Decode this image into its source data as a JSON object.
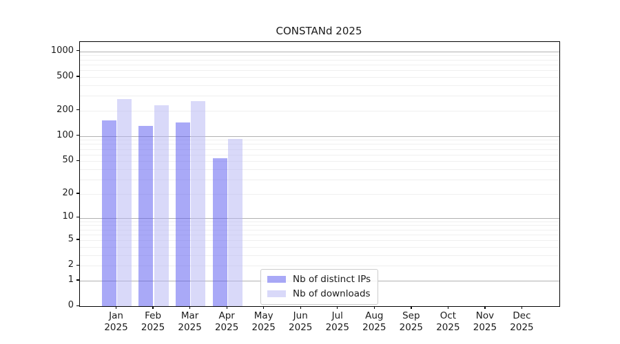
{
  "chart_data": {
    "type": "bar",
    "title": "CONSTANd 2025",
    "categories": [
      "Jan 2025",
      "Feb 2025",
      "Mar 2025",
      "Apr 2025",
      "May 2025",
      "Jun 2025",
      "Jul 2025",
      "Aug 2025",
      "Sep 2025",
      "Oct 2025",
      "Nov 2025",
      "Dec 2025"
    ],
    "series": [
      {
        "name": "Nb of distinct IPs",
        "color": "rgba(84,84,240,0.5)",
        "values": [
          152,
          132,
          144,
          54,
          0,
          0,
          0,
          0,
          0,
          0,
          0,
          0
        ]
      },
      {
        "name": "Nb of downloads",
        "color": "rgba(180,180,244,0.5)",
        "values": [
          272,
          232,
          260,
          92,
          0,
          0,
          0,
          0,
          0,
          0,
          0,
          0
        ]
      }
    ],
    "yscale": "log1p",
    "y_ticks": [
      0,
      1,
      2,
      5,
      10,
      20,
      50,
      100,
      200,
      500,
      1000
    ],
    "ylim": [
      0,
      1290
    ],
    "xlabel": "",
    "ylabel": "",
    "grid": "horizontal",
    "legend_position": "lower-center"
  }
}
